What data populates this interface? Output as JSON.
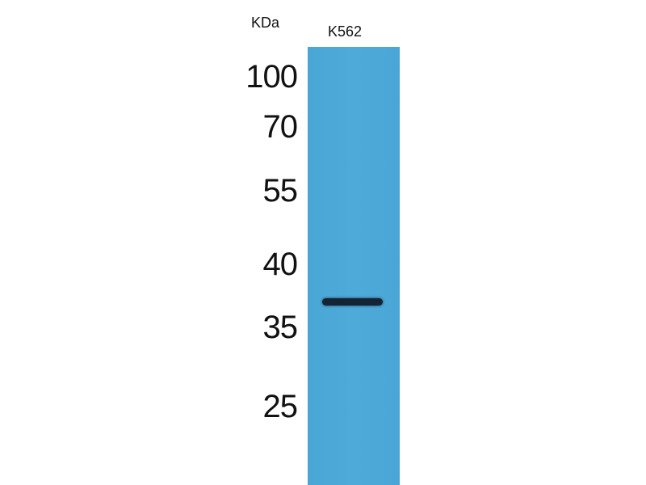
{
  "axis_label": "KDa",
  "lanes": [
    {
      "label": "K562"
    }
  ],
  "markers": [
    "100",
    "70",
    "55",
    "40",
    "35",
    "25"
  ],
  "bands": [
    {
      "lane": "K562",
      "approx_kda": 37
    }
  ],
  "colors": {
    "membrane": "#4aa8d6",
    "band": "#152434"
  }
}
